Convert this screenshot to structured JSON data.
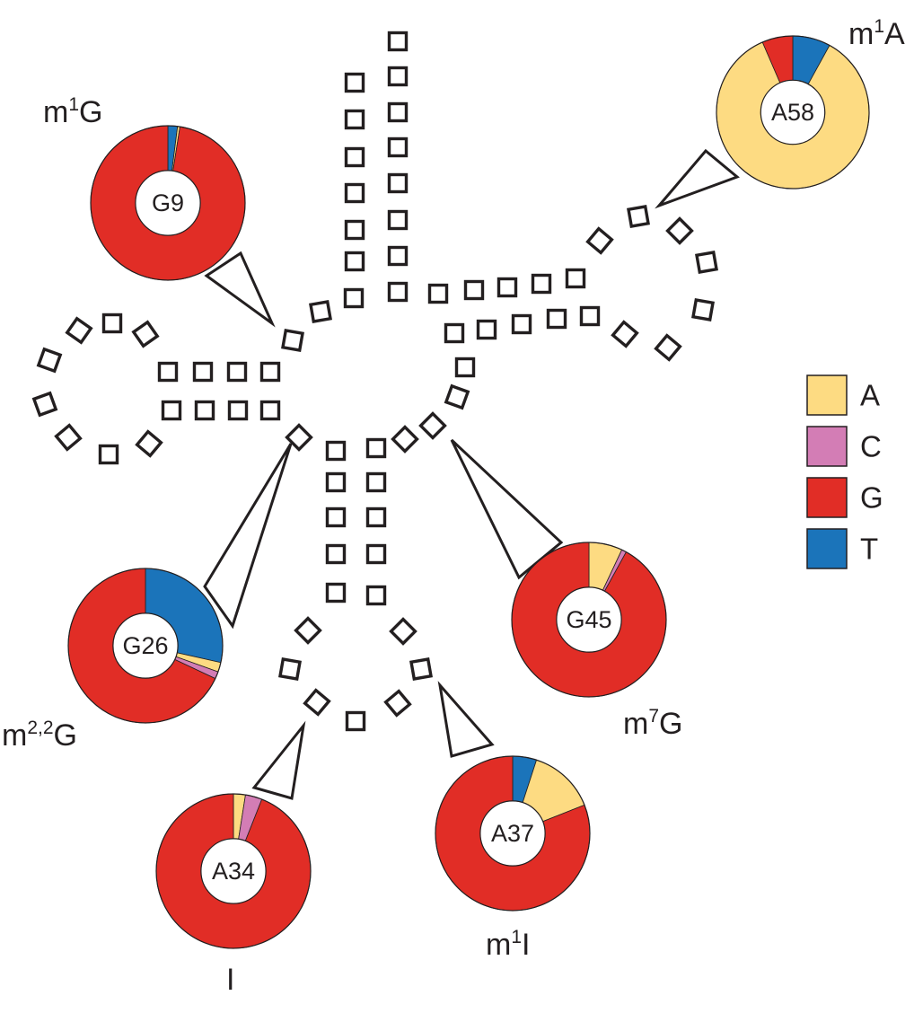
{
  "colors": {
    "A": "#fddb82",
    "C": "#d37db5",
    "G": "#e12d26",
    "T": "#1b74ba",
    "outline": "#231f20"
  },
  "legend": [
    {
      "base": "A",
      "label": "A"
    },
    {
      "base": "C",
      "label": "C"
    },
    {
      "base": "G",
      "label": "G"
    },
    {
      "base": "T",
      "label": "T"
    }
  ],
  "sites": [
    {
      "id": "G9",
      "site": "G9",
      "modification": {
        "base": "m",
        "sup": "1",
        "rest": "G"
      },
      "composition": {
        "A": 0.005,
        "C": 0.0,
        "G": 0.975,
        "T": 0.02
      }
    },
    {
      "id": "A58",
      "site": "A58",
      "modification": {
        "base": "m",
        "sup": "1",
        "rest": "A"
      },
      "composition": {
        "A": 0.855,
        "C": 0.0,
        "G": 0.065,
        "T": 0.08
      }
    },
    {
      "id": "G26",
      "site": "G26",
      "modification": {
        "base": "m",
        "sup": "2,2",
        "rest": "G"
      },
      "composition": {
        "A": 0.02,
        "C": 0.015,
        "G": 0.68,
        "T": 0.285
      }
    },
    {
      "id": "G45",
      "site": "G45",
      "modification": {
        "base": "m",
        "sup": "7",
        "rest": "G"
      },
      "composition": {
        "A": 0.07,
        "C": 0.01,
        "G": 0.92,
        "T": 0.0
      }
    },
    {
      "id": "A34",
      "site": "A34",
      "modification": {
        "base": "I",
        "sup": "",
        "rest": ""
      },
      "composition": {
        "A": 0.025,
        "C": 0.035,
        "G": 0.94,
        "T": 0.0
      }
    },
    {
      "id": "A37",
      "site": "A37",
      "modification": {
        "base": "m",
        "sup": "1",
        "rest": "I"
      },
      "composition": {
        "A": 0.14,
        "C": 0.0,
        "G": 0.81,
        "T": 0.05
      }
    }
  ]
}
